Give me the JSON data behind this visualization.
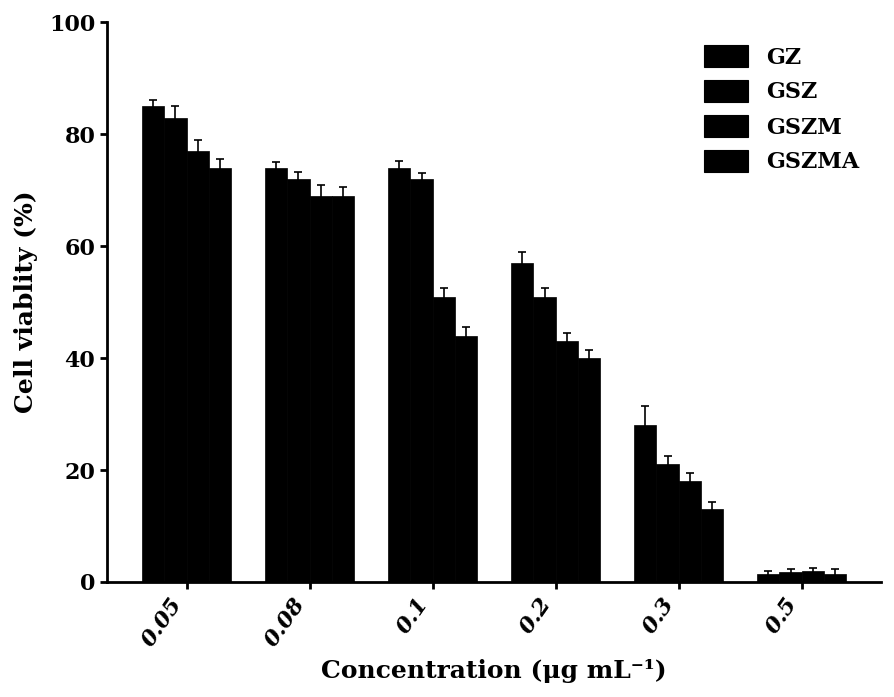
{
  "concentrations": [
    "0.05",
    "0.08",
    "0.1",
    "0.2",
    "0.3",
    "0.5"
  ],
  "series": {
    "GZ": {
      "values": [
        85,
        74,
        74,
        57,
        28,
        1.5
      ],
      "errors": [
        1.2,
        1.0,
        1.2,
        2.0,
        3.5,
        0.5
      ]
    },
    "GSZ": {
      "values": [
        83,
        72,
        72,
        51,
        21,
        1.8
      ],
      "errors": [
        2.0,
        1.2,
        1.0,
        1.5,
        1.5,
        0.5
      ]
    },
    "GSZM": {
      "values": [
        77,
        69,
        51,
        43,
        18,
        2.0
      ],
      "errors": [
        2.0,
        2.0,
        1.5,
        1.5,
        1.5,
        0.5
      ]
    },
    "GSZMA": {
      "values": [
        74,
        69,
        44,
        40,
        13,
        1.5
      ],
      "errors": [
        1.5,
        1.5,
        1.5,
        1.5,
        1.2,
        0.8
      ]
    }
  },
  "bar_color": "#000000",
  "bar_width": 0.18,
  "ylabel": "Cell viablity (%)",
  "xlabel": "Concentration (μg mL⁻¹)",
  "ylim": [
    0,
    100
  ],
  "yticks": [
    0,
    20,
    40,
    60,
    80,
    100
  ],
  "legend_labels": [
    "GZ",
    "GSZ",
    "GSZM",
    "GSZMA"
  ],
  "label_fontsize": 18,
  "tick_fontsize": 16,
  "legend_fontsize": 16,
  "background_color": "#ffffff"
}
